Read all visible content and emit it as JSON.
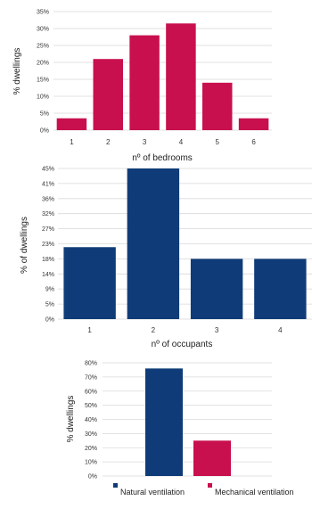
{
  "colors": {
    "crimson": "#c8104e",
    "navy": "#0f3c78",
    "grid": "#d9d9d9"
  },
  "chart_data": [
    {
      "type": "bar",
      "categories": [
        "1",
        "2",
        "3",
        "4",
        "5",
        "6"
      ],
      "values": [
        3.5,
        21,
        28,
        31.5,
        14,
        3.5
      ],
      "xlabel": "nº of bedrooms",
      "ylabel": "% dwellings",
      "ylim": [
        0,
        35
      ],
      "yticks": [
        "0%",
        "5%",
        "10%",
        "15%",
        "20%",
        "25%",
        "30%",
        "35%"
      ],
      "color": "#c8104e",
      "grid": true
    },
    {
      "type": "bar",
      "categories": [
        "1",
        "2",
        "3",
        "4"
      ],
      "values": [
        21.5,
        45,
        18,
        18
      ],
      "xlabel": "nº of occupants",
      "ylabel": "% of dwellings",
      "ylim": [
        0,
        45
      ],
      "yticks": [
        "0%",
        "5%",
        "9%",
        "14%",
        "18%",
        "23%",
        "27%",
        "32%",
        "36%",
        "41%",
        "45%"
      ],
      "color": "#0f3c78",
      "grid": true
    },
    {
      "type": "bar",
      "categories": [
        "Natural ventilation",
        "Mechanical ventilation"
      ],
      "values": [
        76,
        25
      ],
      "xlabel": "",
      "ylabel": "% dwellings",
      "ylim": [
        0,
        80
      ],
      "yticks": [
        "0%",
        "10%",
        "20%",
        "30%",
        "40%",
        "50%",
        "60%",
        "70%",
        "80%"
      ],
      "colors": [
        "#0f3c78",
        "#c8104e"
      ],
      "legend": [
        "Natural ventilation",
        "Mechanical ventilation"
      ],
      "legend_position": "bottom",
      "grid": true
    }
  ]
}
